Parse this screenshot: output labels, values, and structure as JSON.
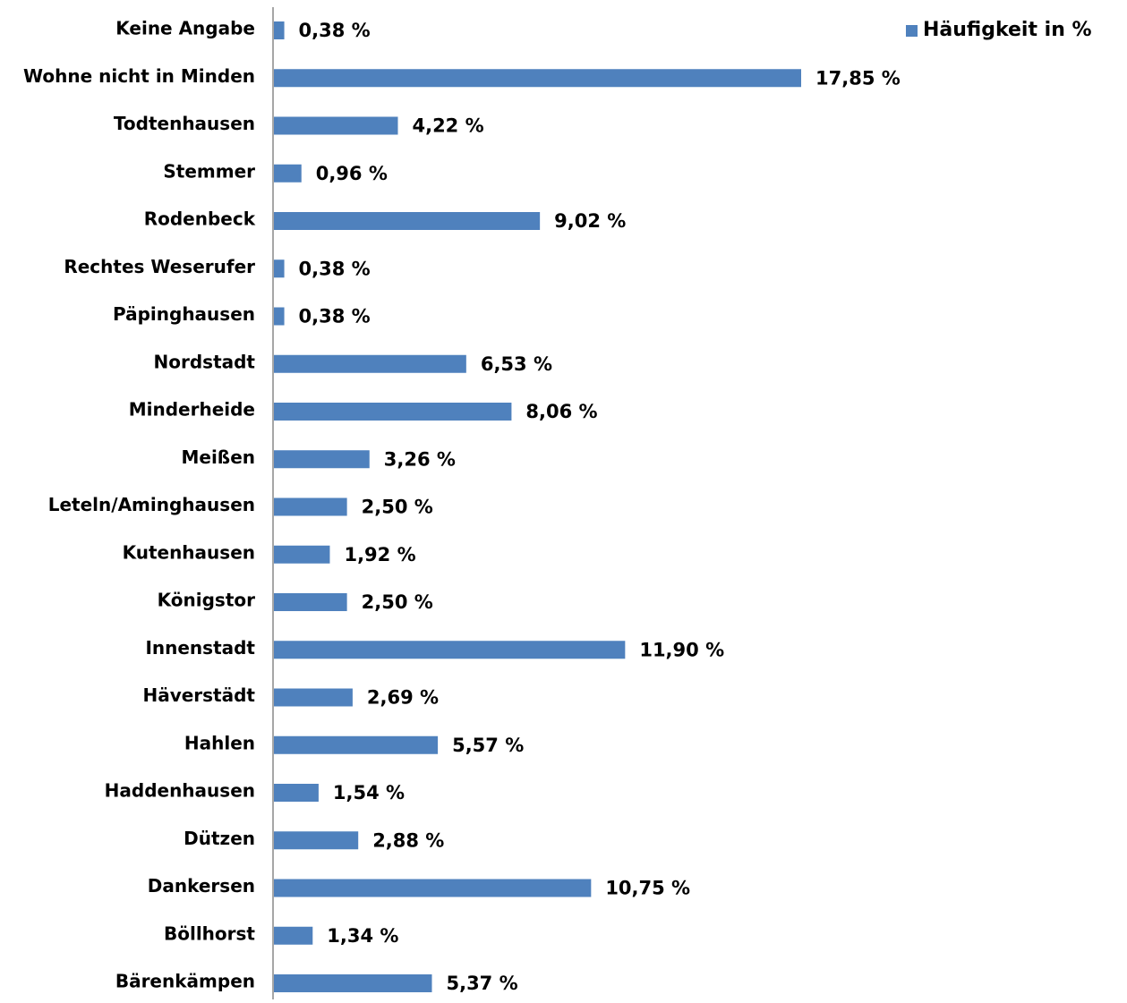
{
  "chart_data": {
    "type": "bar",
    "orientation": "horizontal",
    "categories": [
      "Keine Angabe",
      "Wohne nicht in Minden",
      "Todtenhausen",
      "Stemmer",
      "Rodenbeck",
      "Rechtes Weserufer",
      "Päpinghausen",
      "Nordstadt",
      "Minderheide",
      "Meißen",
      "Leteln/Aminghausen",
      "Kutenhausen",
      "Königstor",
      "Innenstadt",
      "Häverstädt",
      "Hahlen",
      "Haddenhausen",
      "Dützen",
      "Dankersen",
      "Böllhorst",
      "Bärenkämpen"
    ],
    "series": [
      {
        "name": "Häufigkeit in %",
        "color": "#4f81bd",
        "values": [
          0.38,
          17.85,
          4.22,
          0.96,
          9.02,
          0.38,
          0.38,
          6.53,
          8.06,
          3.26,
          2.5,
          1.92,
          2.5,
          11.9,
          2.69,
          5.57,
          1.54,
          2.88,
          10.75,
          1.34,
          5.37
        ],
        "value_labels": [
          "0,38 %",
          "17,85 %",
          "4,22 %",
          "0,96 %",
          "9,02 %",
          "0,38 %",
          "0,38 %",
          "6,53 %",
          "8,06 %",
          "3,26 %",
          "2,50 %",
          "1,92 %",
          "2,50 %",
          "11,90 %",
          "2,69 %",
          "5,57 %",
          "1,54 %",
          "2,88 %",
          "10,75 %",
          "1,34 %",
          "5,37 %"
        ]
      }
    ],
    "legend": "top-right"
  }
}
